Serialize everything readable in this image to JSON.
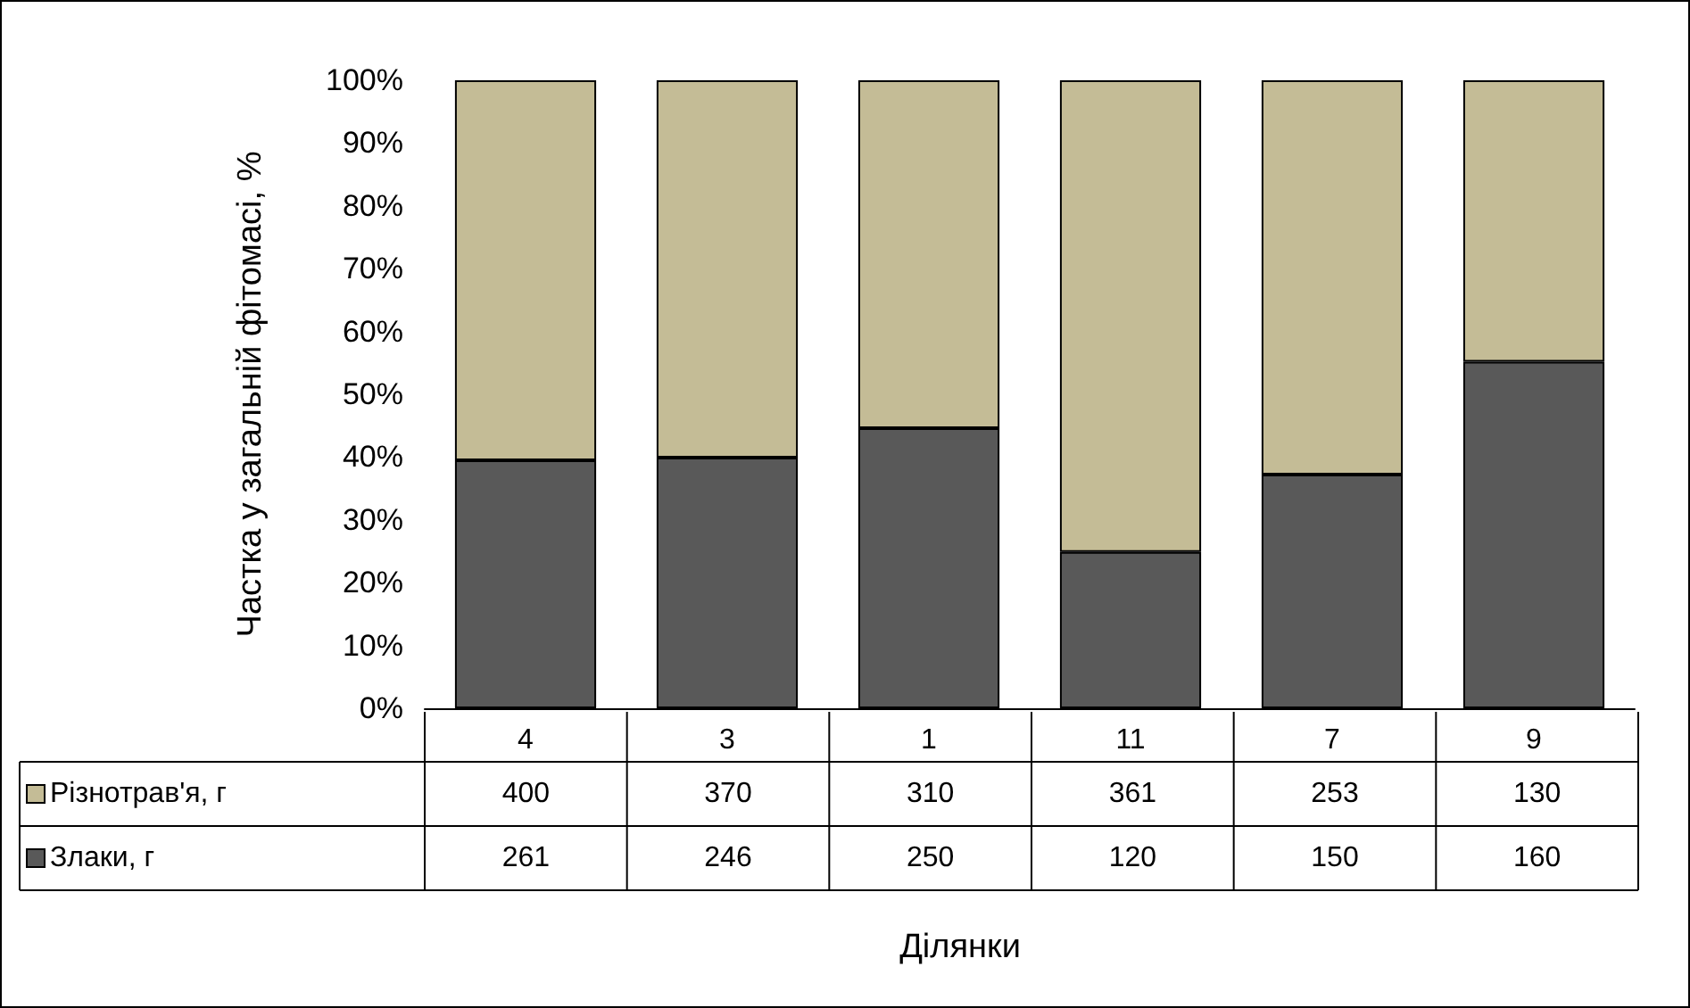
{
  "chart_data": {
    "type": "bar",
    "stacked": true,
    "ylabel": "Частка у загальній фітомасі, %",
    "categories": [
      "4",
      "3",
      "1",
      "11",
      "7",
      "9"
    ],
    "series": [
      {
        "name": "Злаки, г",
        "color": "#595959",
        "values": [
          39.5,
          39.9,
          44.6,
          24.9,
          37.2,
          55.2
        ]
      },
      {
        "name": "Різнотрав'я, г",
        "color": "#c4bc96",
        "values": [
          60.5,
          60.1,
          55.4,
          75.1,
          62.8,
          44.8
        ]
      }
    ],
    "ylim": [
      0,
      100
    ],
    "yticks": [
      {
        "value": 0,
        "label": "0%"
      },
      {
        "value": 10,
        "label": "10%"
      },
      {
        "value": 20,
        "label": "20%"
      },
      {
        "value": 30,
        "label": "30%"
      },
      {
        "value": 40,
        "label": "40%"
      },
      {
        "value": 50,
        "label": "50%"
      },
      {
        "value": 60,
        "label": "60%"
      },
      {
        "value": 70,
        "label": "70%"
      },
      {
        "value": 80,
        "label": "80%"
      },
      {
        "value": 90,
        "label": "90%"
      },
      {
        "value": 100,
        "label": "100%"
      }
    ],
    "grid": false,
    "legend": "bottom",
    "annotations": [
      "400",
      "370",
      "310",
      "361",
      "253",
      "130",
      "261",
      "246",
      "250",
      "120",
      "150",
      "160",
      "Ділянки"
    ]
  }
}
